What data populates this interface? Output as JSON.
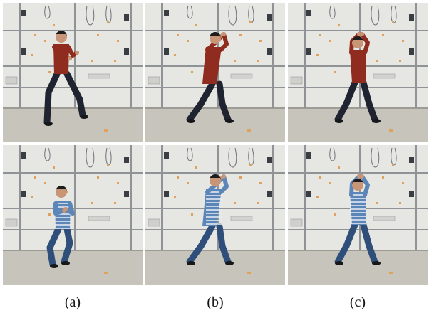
{
  "figure": {
    "captions": [
      "(a)",
      "(b)",
      "(c)"
    ],
    "colors": {
      "wall": "#e6e6e2",
      "floor": "#c7c4bc",
      "rail": "#8f9396",
      "red_shirt": "#8f2c1f",
      "striped_shirt": "#5b86b7",
      "dark_pants": "#1f2430",
      "jeans": "#2f4f7a",
      "skin": "#c99577",
      "hair": "#1c1c1c",
      "sticky_note": "#e0a15a"
    },
    "panels": [
      {
        "name": "top-a",
        "subject": "red",
        "pose": "lunge-arms-forward"
      },
      {
        "name": "top-b",
        "subject": "red",
        "pose": "step-arms-raised"
      },
      {
        "name": "top-c",
        "subject": "red",
        "pose": "stance-arms-raised"
      },
      {
        "name": "bottom-a",
        "subject": "striped",
        "pose": "crouch-arms-chest"
      },
      {
        "name": "bottom-b",
        "subject": "striped",
        "pose": "step-arms-raised"
      },
      {
        "name": "bottom-c",
        "subject": "striped",
        "pose": "stance-arms-raised"
      }
    ]
  }
}
